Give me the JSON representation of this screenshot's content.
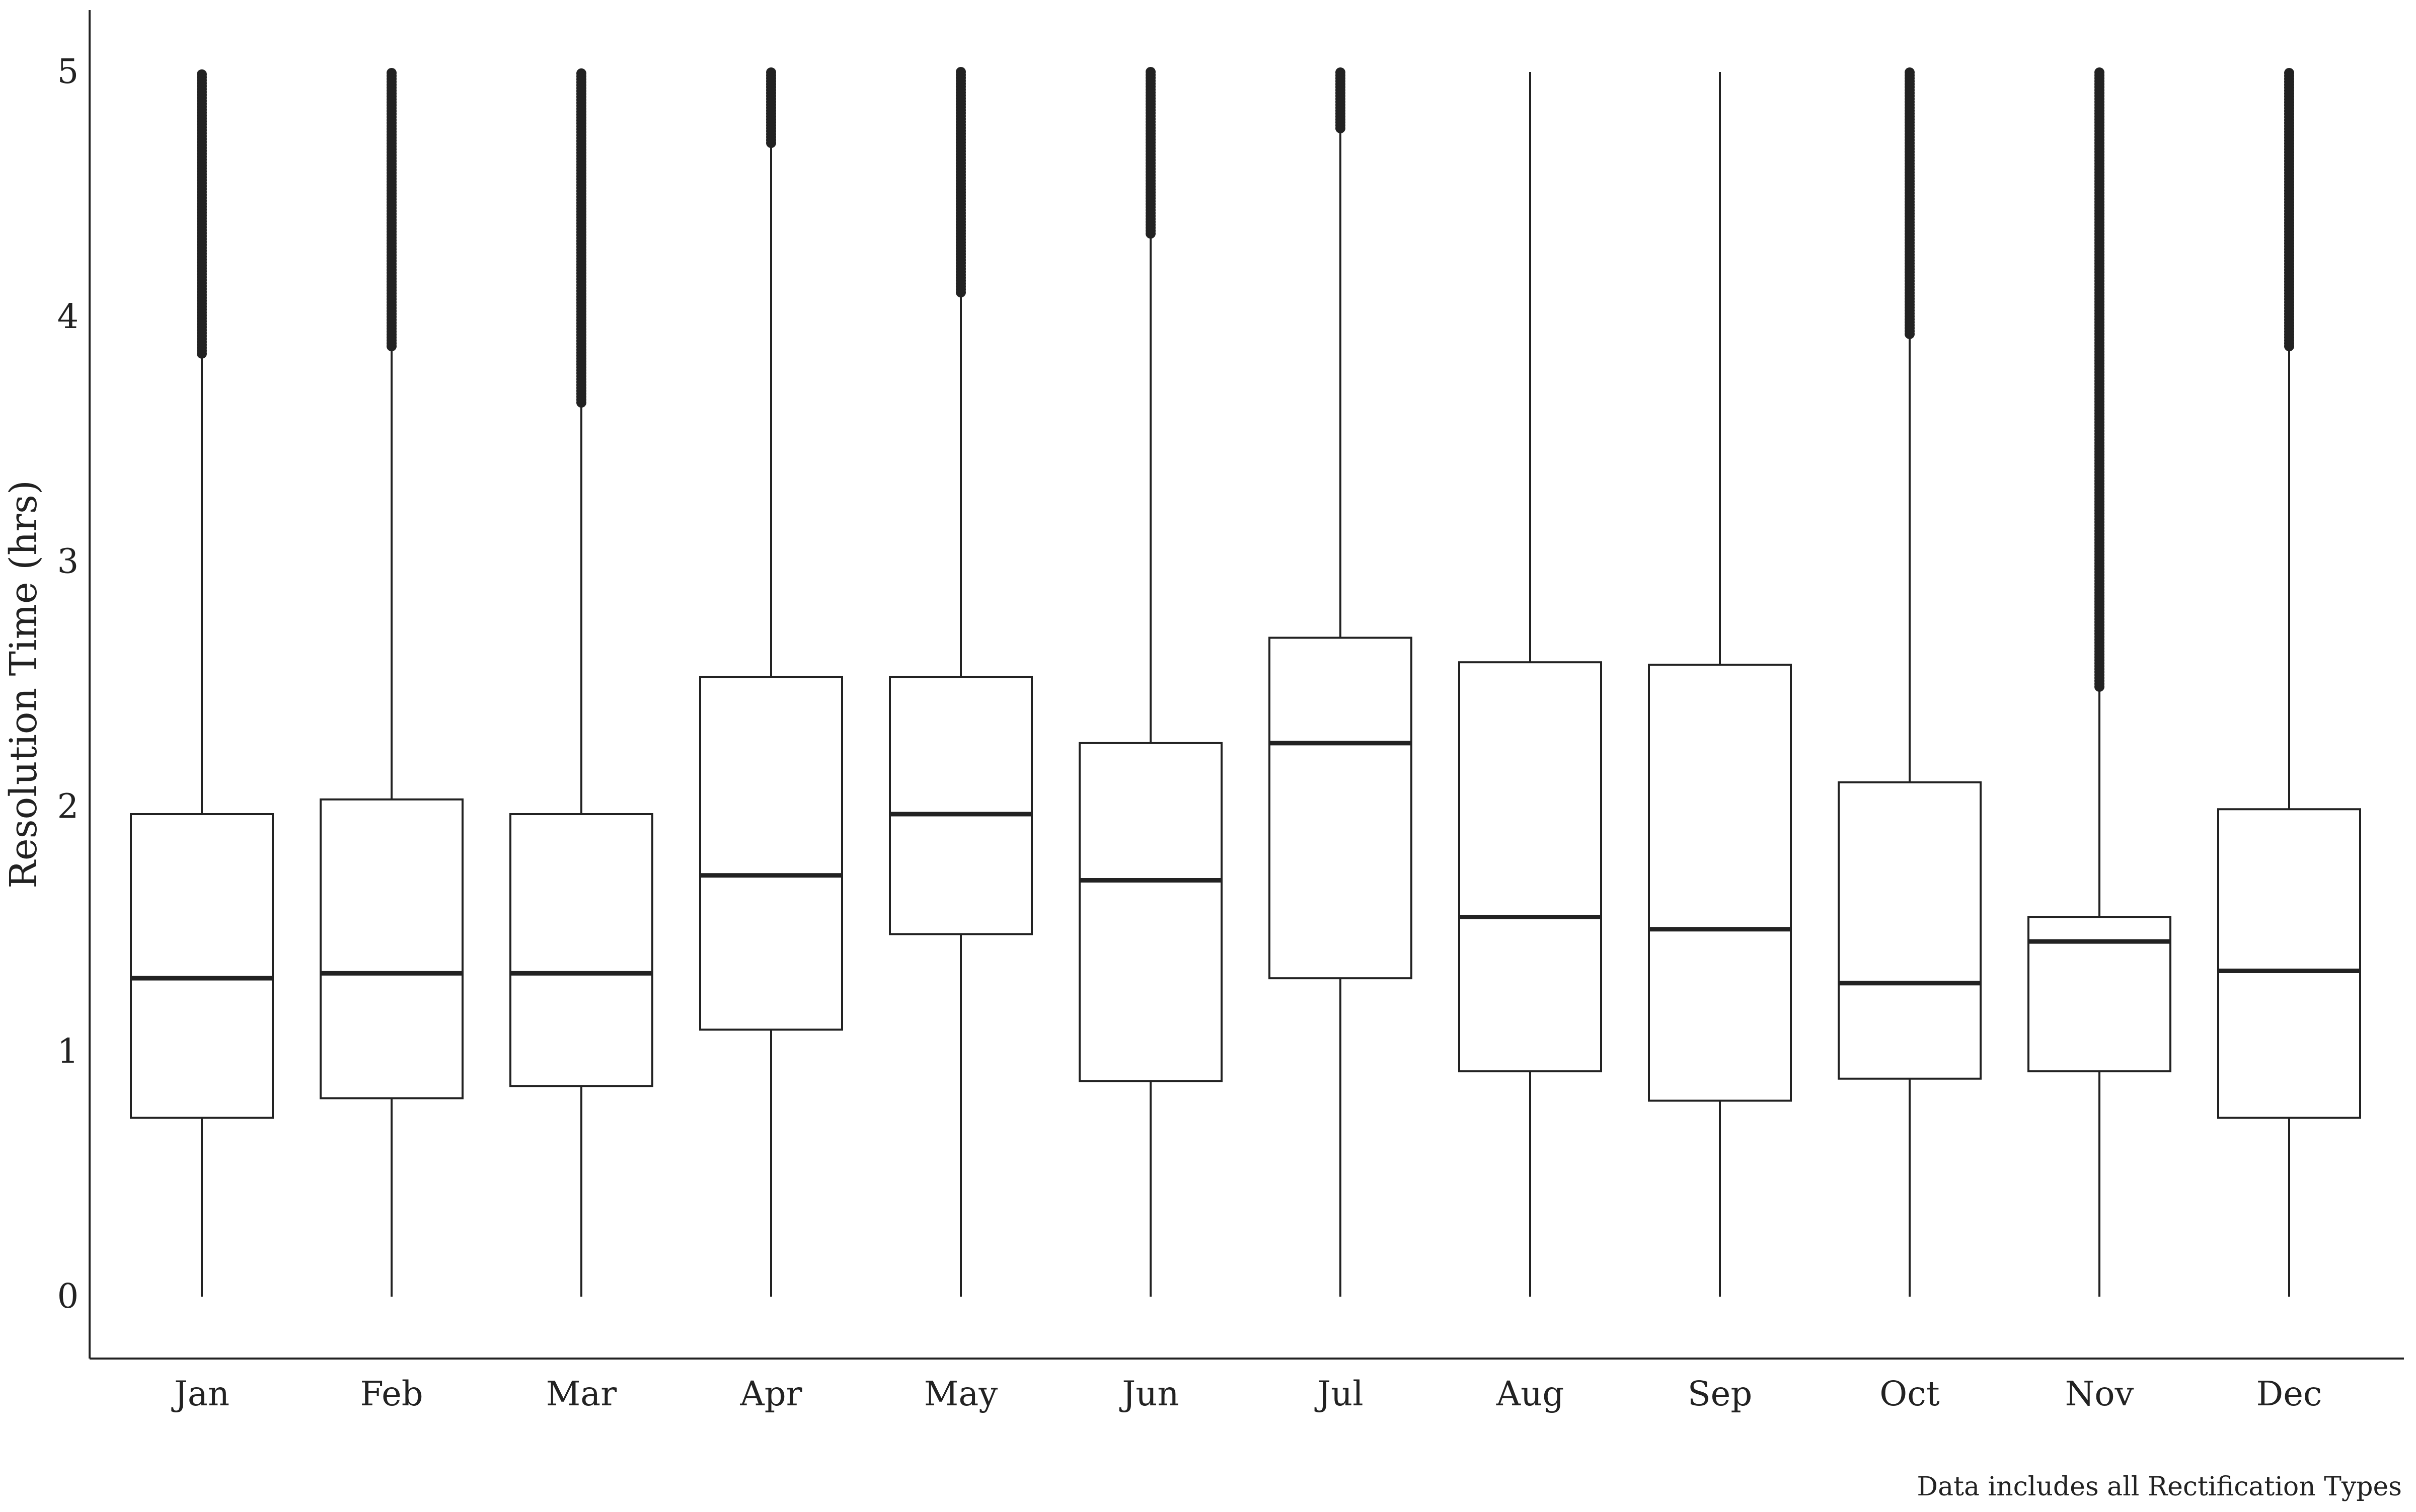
{
  "chart_data": {
    "type": "box",
    "title": "",
    "xlabel": "",
    "ylabel": "Resolution Time (hrs)",
    "ylim": [
      0,
      5
    ],
    "yticks": [
      0,
      1,
      2,
      3,
      4,
      5
    ],
    "categories": [
      "Jan",
      "Feb",
      "Mar",
      "Apr",
      "May",
      "Jun",
      "Jul",
      "Aug",
      "Sep",
      "Oct",
      "Nov",
      "Dec"
    ],
    "boxes": [
      {
        "whisker_low": 0,
        "q1": 0.73,
        "median": 1.3,
        "q3": 1.97,
        "whisker_high": 3.85,
        "outliers_range": [
          3.85,
          5.0
        ]
      },
      {
        "whisker_low": 0,
        "q1": 0.81,
        "median": 1.32,
        "q3": 2.03,
        "whisker_high": 3.88,
        "outliers_range": [
          3.88,
          5.0
        ]
      },
      {
        "whisker_low": 0,
        "q1": 0.86,
        "median": 1.32,
        "q3": 1.97,
        "whisker_high": 3.65,
        "outliers_range": [
          3.65,
          5.0
        ]
      },
      {
        "whisker_low": 0,
        "q1": 1.09,
        "median": 1.72,
        "q3": 2.53,
        "whisker_high": 4.71,
        "outliers_range": [
          4.71,
          5.0
        ]
      },
      {
        "whisker_low": 0,
        "q1": 1.48,
        "median": 1.97,
        "q3": 2.53,
        "whisker_high": 4.1,
        "outliers_range": [
          4.1,
          5.0
        ]
      },
      {
        "whisker_low": 0,
        "q1": 0.88,
        "median": 1.7,
        "q3": 2.26,
        "whisker_high": 4.34,
        "outliers_range": [
          4.34,
          5.0
        ]
      },
      {
        "whisker_low": 0,
        "q1": 1.3,
        "median": 2.26,
        "q3": 2.69,
        "whisker_high": 4.77,
        "outliers_range": [
          4.77,
          5.0
        ]
      },
      {
        "whisker_low": 0,
        "q1": 0.92,
        "median": 1.55,
        "q3": 2.59,
        "whisker_high": 5.0,
        "outliers_range": []
      },
      {
        "whisker_low": 0,
        "q1": 0.8,
        "median": 1.5,
        "q3": 2.58,
        "whisker_high": 5.0,
        "outliers_range": []
      },
      {
        "whisker_low": 0,
        "q1": 0.89,
        "median": 1.28,
        "q3": 2.1,
        "whisker_high": 3.93,
        "outliers_range": [
          3.93,
          5.0
        ]
      },
      {
        "whisker_low": 0,
        "q1": 0.92,
        "median": 1.45,
        "q3": 1.55,
        "whisker_high": 2.49,
        "outliers_range": [
          2.49,
          5.0
        ]
      },
      {
        "whisker_low": 0,
        "q1": 0.73,
        "median": 1.33,
        "q3": 1.99,
        "whisker_high": 3.88,
        "outliers_range": [
          3.88,
          5.0
        ]
      }
    ],
    "caption": "Data includes all Rectification Types",
    "grid": false,
    "legend": "none"
  }
}
